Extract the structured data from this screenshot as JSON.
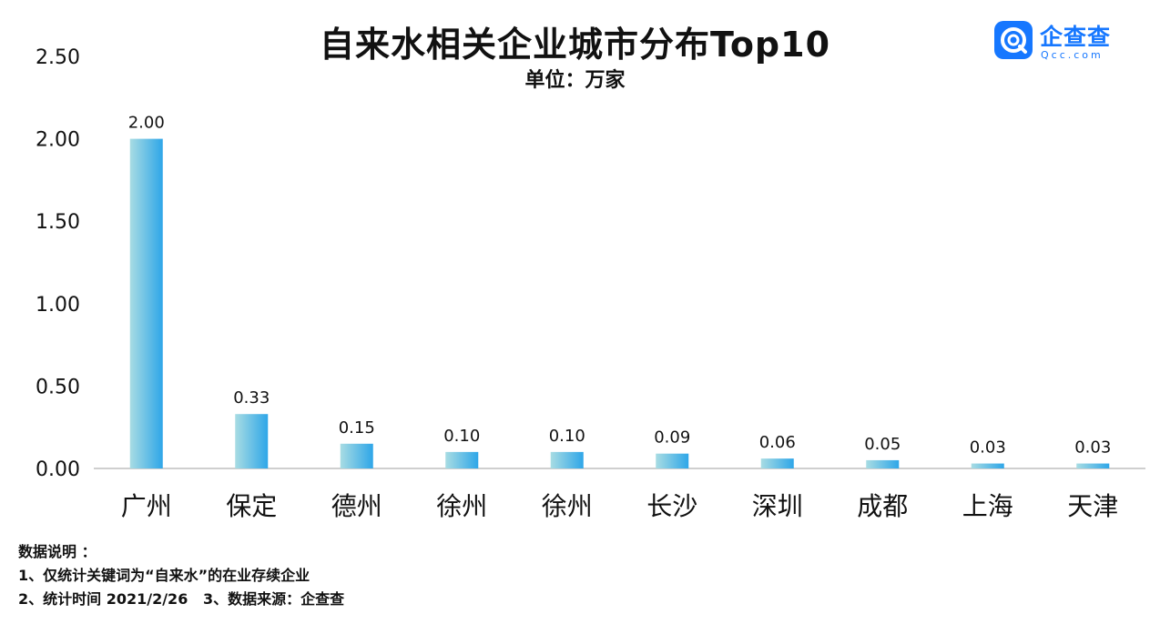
{
  "header": {
    "title": "自来水相关企业城市分布Top10",
    "subtitle": "单位：万家"
  },
  "logo": {
    "name": "企查查",
    "sub": "Qcc.com"
  },
  "chart_data": {
    "type": "bar",
    "categories": [
      "广州",
      "保定",
      "德州",
      "徐州",
      "徐州",
      "长沙",
      "深圳",
      "成都",
      "上海",
      "天津"
    ],
    "values": [
      2.0,
      0.33,
      0.15,
      0.1,
      0.1,
      0.09,
      0.06,
      0.05,
      0.03,
      0.03
    ],
    "data_labels": [
      "2.00",
      "0.33",
      "0.15",
      "0.10",
      "0.10",
      "0.09",
      "0.06",
      "0.05",
      "0.03",
      "0.03"
    ],
    "yticks": [
      0,
      0.5,
      1.0,
      1.5,
      2.0,
      2.5
    ],
    "ytick_labels": [
      "0.00",
      "0.50",
      "1.00",
      "1.50",
      "2.00",
      "2.50"
    ],
    "ylim": [
      0,
      2.5
    ],
    "grid": false,
    "legend": "none",
    "bar_gradient": [
      "#a8dce3",
      "#2ea6e8"
    ],
    "title": "自来水相关企业城市分布Top10",
    "subtitle": "单位：万家"
  },
  "notes": {
    "heading": "数据说明 ：",
    "line1": "1、仅统计关键词为“自来水”的在业存续企业",
    "line2": "2、统计时间 2021/2/26   3、数据来源：企查查"
  }
}
